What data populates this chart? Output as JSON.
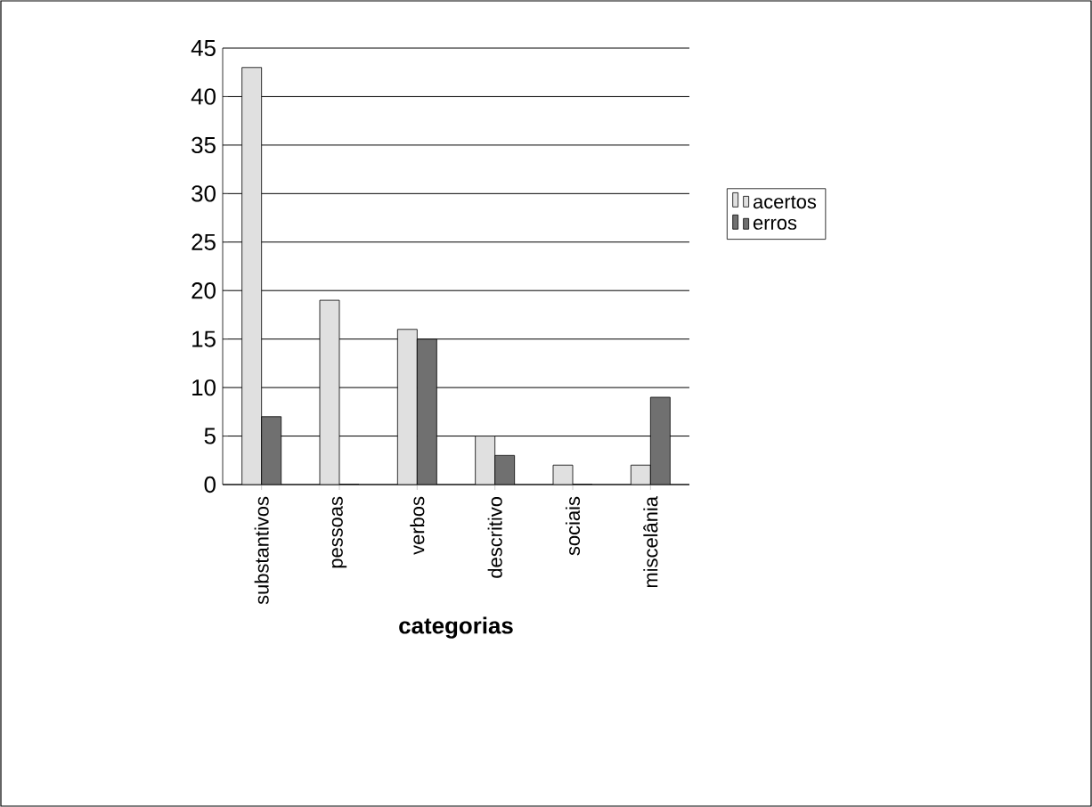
{
  "chart_data": {
    "type": "bar",
    "xlabel": "categorias",
    "categories": [
      "substantivos",
      "pessoas",
      "verbos",
      "descritivo",
      "sociais",
      "miscelânia"
    ],
    "series": [
      {
        "name": "acertos",
        "color": "#e0e0e0",
        "values": [
          43,
          19,
          16,
          5,
          2,
          2
        ]
      },
      {
        "name": "erros",
        "color": "#707070",
        "values": [
          7,
          0,
          15,
          3,
          0,
          9
        ]
      }
    ],
    "ylim": [
      0,
      45
    ],
    "yticks": [
      0,
      5,
      10,
      15,
      20,
      25,
      30,
      35,
      40,
      45
    ],
    "grid": "y",
    "legend": "right"
  }
}
